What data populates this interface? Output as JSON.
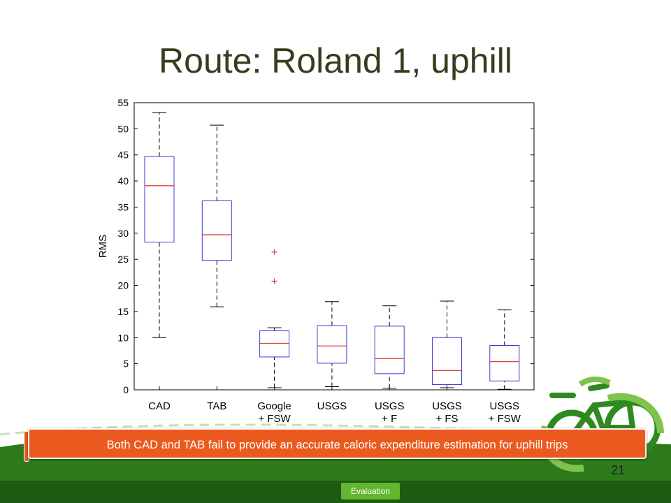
{
  "slide": {
    "title": "Route: Roland 1, uphill",
    "callout": "Both CAD and TAB fail to provide an accurate caloric expenditure estimation for uphill trips",
    "page_number": "21",
    "nav_tab": "Evaluation"
  },
  "colors": {
    "accent": "#ea5a1e",
    "footer_green": "#1f5b12",
    "tab_green": "#63b630",
    "box_stroke": "#3b3bd6",
    "median": "#e0403a",
    "outlier": "#e0403a"
  },
  "icons": [
    "bicycle-icon",
    "recycle-arrows-icon"
  ],
  "chart_data": {
    "type": "boxplot",
    "ylabel": "RMS",
    "xlabel": "",
    "ylim": [
      0,
      55
    ],
    "yticks": [
      0,
      5,
      10,
      15,
      20,
      25,
      30,
      35,
      40,
      45,
      50,
      55
    ],
    "grid": false,
    "categories": [
      [
        "CAD"
      ],
      [
        "TAB"
      ],
      [
        "Google",
        "+ FSW"
      ],
      [
        "USGS"
      ],
      [
        "USGS",
        "+ F"
      ],
      [
        "USGS",
        "+ FS"
      ],
      [
        "USGS",
        "+ FSW"
      ]
    ],
    "boxes": [
      {
        "min": 10.0,
        "q1": 28.3,
        "median": 39.1,
        "q3": 44.7,
        "max": 53.1,
        "outliers": []
      },
      {
        "min": 15.9,
        "q1": 24.8,
        "median": 29.7,
        "q3": 36.2,
        "max": 50.7,
        "outliers": []
      },
      {
        "min": 0.4,
        "q1": 6.3,
        "median": 8.9,
        "q3": 11.3,
        "max": 11.9,
        "outliers": [
          26.4,
          20.8
        ]
      },
      {
        "min": 0.6,
        "q1": 5.1,
        "median": 8.4,
        "q3": 12.3,
        "max": 16.9,
        "outliers": []
      },
      {
        "min": 0.3,
        "q1": 3.1,
        "median": 6.0,
        "q3": 12.2,
        "max": 16.1,
        "outliers": []
      },
      {
        "min": 0.4,
        "q1": 1.0,
        "median": 3.7,
        "q3": 10.0,
        "max": 17.0,
        "outliers": []
      },
      {
        "min": 0.1,
        "q1": 1.7,
        "median": 5.4,
        "q3": 8.5,
        "max": 15.3,
        "outliers": []
      }
    ]
  }
}
